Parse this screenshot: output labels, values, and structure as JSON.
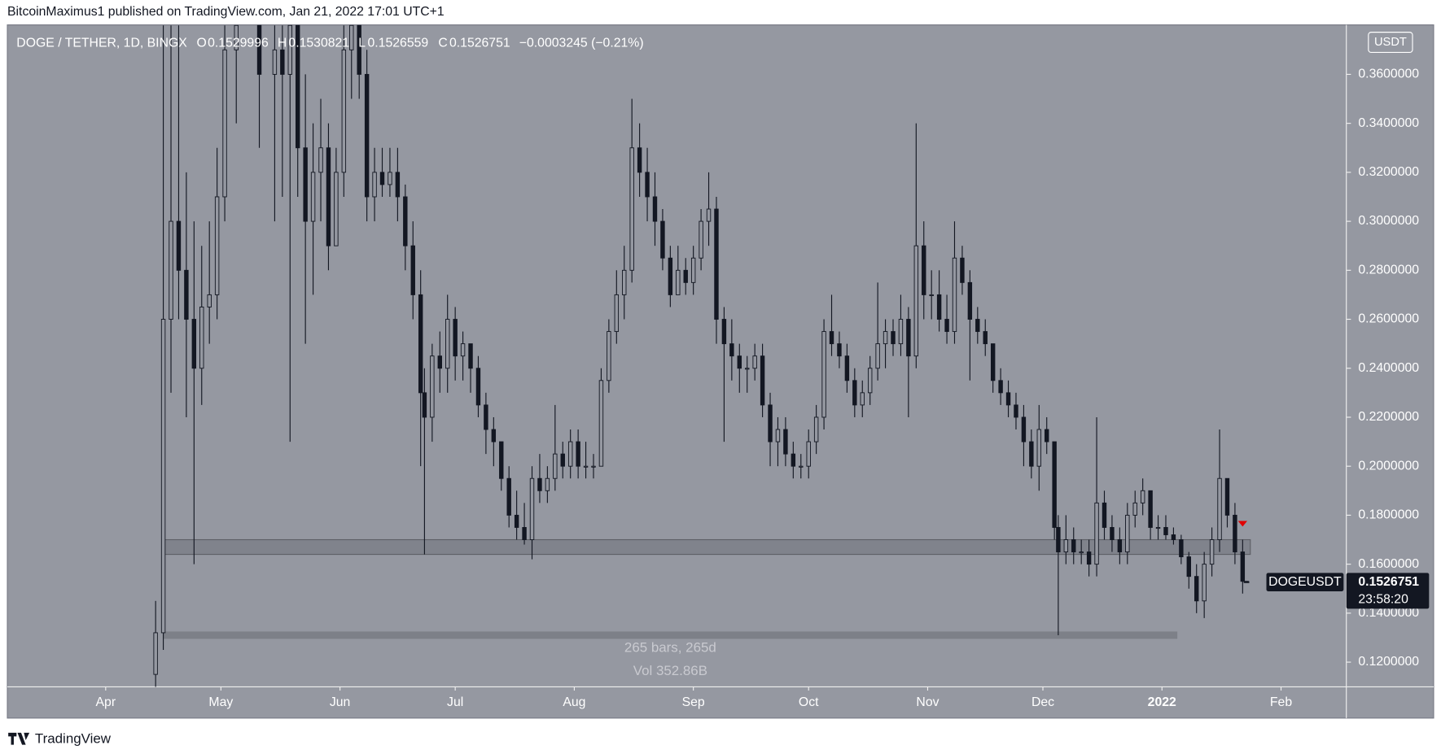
{
  "header": {
    "text": "BitcoinMaximus1 published on TradingView.com, Jan 21, 2022 17:01 UTC+1"
  },
  "footer": {
    "brand": "TradingView"
  },
  "chart_data": {
    "type": "candlestick",
    "title": "DOGE / TETHER, 1D, BINGX",
    "legend": {
      "o": "O",
      "h": "H",
      "l": "L",
      "c": "C",
      "change": "−0.0003245 (−0.21%)"
    },
    "currency": "USDT",
    "symbol": "DOGEUSDT",
    "countdown": "23:58:20",
    "x": [
      13,
      15,
      17,
      19,
      21,
      23,
      25,
      27,
      29,
      31,
      34,
      40,
      44,
      46,
      48,
      50,
      52,
      54,
      56,
      58,
      60,
      62,
      64,
      66,
      68,
      70,
      72,
      74,
      76,
      78,
      80,
      82,
      83,
      85,
      87,
      89,
      91,
      93,
      95,
      97,
      99,
      101,
      103,
      105,
      107,
      109,
      111,
      113,
      115,
      117,
      119,
      121,
      123,
      125,
      127,
      129,
      131,
      133,
      135,
      137,
      139,
      141,
      143,
      145,
      147,
      149,
      151,
      153,
      155,
      157,
      159,
      161,
      163,
      165,
      167,
      169,
      171,
      173,
      175,
      177,
      179,
      181,
      183,
      185,
      187,
      189,
      191,
      193,
      195,
      197,
      199,
      201,
      203,
      205,
      207,
      209,
      211,
      213,
      215,
      217,
      219,
      221,
      223,
      225,
      227,
      229,
      231,
      233,
      235,
      237,
      239,
      241,
      243,
      245,
      247,
      248,
      250,
      252,
      254,
      256,
      258,
      260,
      262,
      264,
      266,
      268,
      270,
      272,
      274,
      276,
      278,
      280,
      282,
      284,
      286,
      288,
      290,
      292,
      294,
      296,
      297
    ],
    "open": [
      0.115,
      0.132,
      0.26,
      0.3,
      0.28,
      0.26,
      0.24,
      0.265,
      0.27,
      0.31,
      0.37,
      0.38,
      0.36,
      0.37,
      0.36,
      0.38,
      0.33,
      0.3,
      0.32,
      0.33,
      0.29,
      0.32,
      0.37,
      0.38,
      0.36,
      0.31,
      0.32,
      0.315,
      0.32,
      0.31,
      0.29,
      0.27,
      0.23,
      0.22,
      0.245,
      0.24,
      0.26,
      0.245,
      0.25,
      0.24,
      0.225,
      0.215,
      0.21,
      0.195,
      0.18,
      0.175,
      0.17,
      0.195,
      0.19,
      0.195,
      0.205,
      0.2,
      0.21,
      0.2,
      0.2,
      0.2,
      0.235,
      0.255,
      0.27,
      0.28,
      0.33,
      0.32,
      0.31,
      0.3,
      0.285,
      0.27,
      0.28,
      0.275,
      0.285,
      0.3,
      0.305,
      0.26,
      0.25,
      0.245,
      0.24,
      0.24,
      0.245,
      0.225,
      0.21,
      0.215,
      0.205,
      0.2,
      0.2,
      0.21,
      0.22,
      0.255,
      0.25,
      0.245,
      0.235,
      0.225,
      0.23,
      0.24,
      0.25,
      0.255,
      0.25,
      0.26,
      0.245,
      0.29,
      0.27,
      0.27,
      0.26,
      0.255,
      0.285,
      0.275,
      0.26,
      0.255,
      0.25,
      0.235,
      0.23,
      0.225,
      0.22,
      0.21,
      0.2,
      0.215,
      0.21,
      0.175,
      0.165,
      0.17,
      0.165,
      0.165,
      0.16,
      0.185,
      0.175,
      0.17,
      0.165,
      0.18,
      0.185,
      0.19,
      0.175,
      0.175,
      0.172,
      0.17,
      0.163,
      0.155,
      0.145,
      0.16,
      0.17,
      0.195,
      0.18,
      0.165,
      0.1529996
    ],
    "high": [
      0.145,
      0.38,
      0.38,
      0.38,
      0.32,
      0.3,
      0.29,
      0.3,
      0.33,
      0.38,
      0.38,
      0.38,
      0.38,
      0.38,
      0.38,
      0.38,
      0.36,
      0.34,
      0.35,
      0.34,
      0.33,
      0.38,
      0.38,
      0.38,
      0.37,
      0.33,
      0.33,
      0.33,
      0.33,
      0.315,
      0.3,
      0.28,
      0.24,
      0.25,
      0.255,
      0.27,
      0.265,
      0.255,
      0.25,
      0.245,
      0.23,
      0.22,
      0.21,
      0.2,
      0.19,
      0.185,
      0.2,
      0.205,
      0.2,
      0.225,
      0.21,
      0.215,
      0.215,
      0.21,
      0.205,
      0.24,
      0.26,
      0.28,
      0.29,
      0.35,
      0.34,
      0.33,
      0.32,
      0.305,
      0.29,
      0.29,
      0.285,
      0.29,
      0.305,
      0.32,
      0.31,
      0.265,
      0.26,
      0.25,
      0.245,
      0.25,
      0.25,
      0.23,
      0.22,
      0.22,
      0.21,
      0.205,
      0.215,
      0.225,
      0.26,
      0.27,
      0.255,
      0.25,
      0.24,
      0.235,
      0.245,
      0.275,
      0.26,
      0.26,
      0.27,
      0.265,
      0.34,
      0.3,
      0.28,
      0.28,
      0.27,
      0.3,
      0.29,
      0.28,
      0.265,
      0.26,
      0.25,
      0.24,
      0.235,
      0.23,
      0.225,
      0.215,
      0.225,
      0.22,
      0.21,
      0.18,
      0.18,
      0.175,
      0.17,
      0.17,
      0.22,
      0.19,
      0.18,
      0.175,
      0.185,
      0.19,
      0.195,
      0.19,
      0.18,
      0.18,
      0.175,
      0.172,
      0.165,
      0.16,
      0.165,
      0.175,
      0.215,
      0.195,
      0.185,
      0.17,
      0.1530821
    ],
    "low": [
      0.108,
      0.125,
      0.23,
      0.26,
      0.22,
      0.16,
      0.225,
      0.25,
      0.26,
      0.3,
      0.34,
      0.33,
      0.3,
      0.31,
      0.21,
      0.31,
      0.25,
      0.27,
      0.3,
      0.28,
      0.29,
      0.31,
      0.35,
      0.35,
      0.3,
      0.3,
      0.31,
      0.31,
      0.3,
      0.28,
      0.26,
      0.2,
      0.164,
      0.21,
      0.23,
      0.23,
      0.235,
      0.235,
      0.23,
      0.22,
      0.205,
      0.2,
      0.19,
      0.175,
      0.17,
      0.168,
      0.162,
      0.185,
      0.185,
      0.19,
      0.195,
      0.195,
      0.195,
      0.195,
      0.195,
      0.2,
      0.23,
      0.25,
      0.26,
      0.275,
      0.31,
      0.3,
      0.29,
      0.28,
      0.265,
      0.27,
      0.27,
      0.27,
      0.28,
      0.29,
      0.25,
      0.21,
      0.235,
      0.23,
      0.23,
      0.235,
      0.22,
      0.2,
      0.2,
      0.2,
      0.195,
      0.195,
      0.195,
      0.205,
      0.215,
      0.245,
      0.24,
      0.23,
      0.22,
      0.22,
      0.225,
      0.235,
      0.24,
      0.245,
      0.245,
      0.22,
      0.24,
      0.26,
      0.26,
      0.255,
      0.25,
      0.25,
      0.27,
      0.235,
      0.25,
      0.245,
      0.23,
      0.225,
      0.22,
      0.215,
      0.2,
      0.195,
      0.19,
      0.205,
      0.17,
      0.131,
      0.16,
      0.16,
      0.16,
      0.155,
      0.155,
      0.17,
      0.165,
      0.16,
      0.16,
      0.175,
      0.18,
      0.17,
      0.17,
      0.17,
      0.168,
      0.16,
      0.15,
      0.14,
      0.138,
      0.155,
      0.165,
      0.175,
      0.16,
      0.148,
      0.1526559
    ],
    "close": [
      0.132,
      0.26,
      0.3,
      0.28,
      0.26,
      0.24,
      0.265,
      0.27,
      0.31,
      0.37,
      0.38,
      0.36,
      0.37,
      0.36,
      0.38,
      0.33,
      0.3,
      0.32,
      0.33,
      0.29,
      0.32,
      0.37,
      0.38,
      0.36,
      0.31,
      0.32,
      0.315,
      0.32,
      0.31,
      0.29,
      0.27,
      0.23,
      0.22,
      0.245,
      0.24,
      0.26,
      0.245,
      0.25,
      0.24,
      0.225,
      0.215,
      0.21,
      0.195,
      0.18,
      0.175,
      0.17,
      0.195,
      0.19,
      0.195,
      0.205,
      0.2,
      0.21,
      0.2,
      0.2,
      0.2,
      0.235,
      0.255,
      0.27,
      0.28,
      0.33,
      0.32,
      0.31,
      0.3,
      0.285,
      0.27,
      0.28,
      0.275,
      0.285,
      0.3,
      0.305,
      0.26,
      0.25,
      0.245,
      0.24,
      0.24,
      0.245,
      0.225,
      0.21,
      0.215,
      0.205,
      0.2,
      0.2,
      0.21,
      0.22,
      0.255,
      0.25,
      0.245,
      0.235,
      0.225,
      0.23,
      0.24,
      0.25,
      0.255,
      0.25,
      0.26,
      0.245,
      0.29,
      0.27,
      0.27,
      0.26,
      0.255,
      0.285,
      0.275,
      0.26,
      0.255,
      0.25,
      0.235,
      0.23,
      0.225,
      0.22,
      0.21,
      0.2,
      0.215,
      0.21,
      0.175,
      0.165,
      0.17,
      0.165,
      0.165,
      0.16,
      0.185,
      0.175,
      0.17,
      0.165,
      0.18,
      0.185,
      0.19,
      0.175,
      0.175,
      0.172,
      0.17,
      0.163,
      0.155,
      0.145,
      0.16,
      0.17,
      0.195,
      0.18,
      0.165,
      0.153,
      0.1526751
    ],
    "xlim": [
      -25.6,
      323
    ],
    "xticks": [
      {
        "value": 0,
        "label": "Apr"
      },
      {
        "value": 30,
        "label": "May"
      },
      {
        "value": 61,
        "label": "Jun"
      },
      {
        "value": 91,
        "label": "Jul"
      },
      {
        "value": 122,
        "label": "Aug"
      },
      {
        "value": 153,
        "label": "Sep"
      },
      {
        "value": 183,
        "label": "Oct"
      },
      {
        "value": 214,
        "label": "Nov"
      },
      {
        "value": 244,
        "label": "Dec"
      },
      {
        "value": 275,
        "label": "2022"
      },
      {
        "value": 306,
        "label": "Feb"
      }
    ],
    "ylim": [
      0.1099,
      0.3802
    ],
    "yticks": [
      {
        "value": 0.12,
        "label": "0.1200000"
      },
      {
        "value": 0.14,
        "label": "0.1400000"
      },
      {
        "value": 0.16,
        "label": "0.1600000"
      },
      {
        "value": 0.18,
        "label": "0.1800000"
      },
      {
        "value": 0.2,
        "label": "0.2000000"
      },
      {
        "value": 0.22,
        "label": "0.2200000"
      },
      {
        "value": 0.24,
        "label": "0.2400000"
      },
      {
        "value": 0.26,
        "label": "0.2600000"
      },
      {
        "value": 0.28,
        "label": "0.2800000"
      },
      {
        "value": 0.3,
        "label": "0.3000000"
      },
      {
        "value": 0.32,
        "label": "0.3200000"
      },
      {
        "value": 0.34,
        "label": "0.3400000"
      },
      {
        "value": 0.36,
        "label": "0.3600000"
      }
    ],
    "zone": {
      "x": [
        15,
        298
      ],
      "y": [
        0.164,
        0.17
      ]
    },
    "range": {
      "x": [
        15,
        279
      ],
      "y": 0.131,
      "bars": "265 bars, 265d",
      "volume": "Vol 352.86B"
    },
    "marker": {
      "x": 296,
      "y": 0.1765,
      "color": "#e00000"
    }
  }
}
